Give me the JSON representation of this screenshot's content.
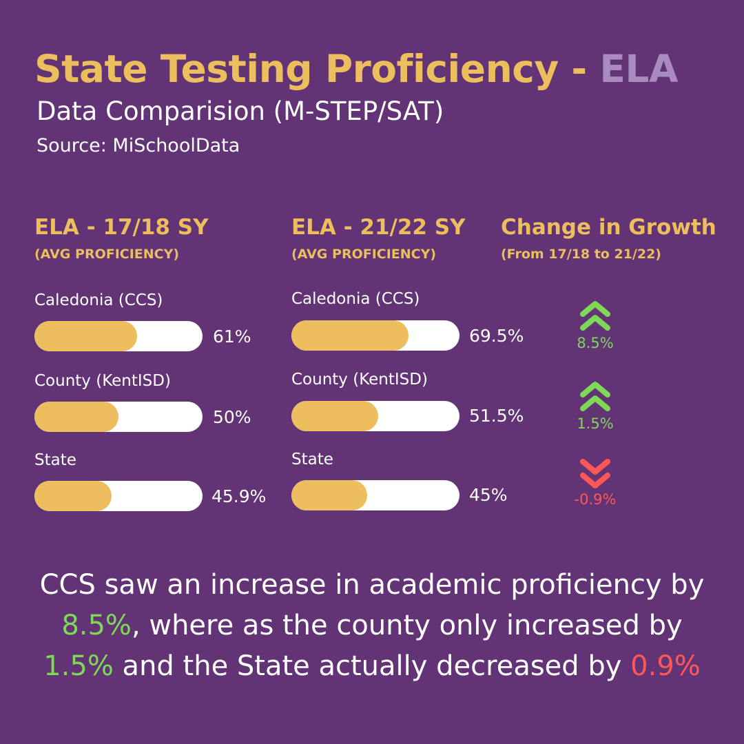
{
  "header": {
    "title_main": "State Testing Proficiency - ",
    "title_accent": "ELA",
    "subtitle": "Data Comparision (M-STEP/SAT)",
    "source": "Source: MiSchoolData"
  },
  "colors": {
    "background": "#623375",
    "gold": "#ecbe5d",
    "lavender": "#a98bbd",
    "increase": "#7ed957",
    "decrease": "#ff5757",
    "bar_track": "#ffffff"
  },
  "columns": {
    "sy1718": {
      "heading": "ELA - 17/18 SY",
      "subheading": "(AVG PROFICIENCY)",
      "items": [
        {
          "label": "Caledonia (CCS)",
          "value": 61,
          "value_text": "61%"
        },
        {
          "label": "County (KentISD)",
          "value": 50,
          "value_text": "50%"
        },
        {
          "label": "State",
          "value": 45.9,
          "value_text": "45.9%"
        }
      ]
    },
    "sy2122": {
      "heading": "ELA - 21/22 SY",
      "subheading": "(AVG PROFICIENCY)",
      "items": [
        {
          "label": "Caledonia (CCS)",
          "value": 69.5,
          "value_text": "69.5%"
        },
        {
          "label": "County (KentISD)",
          "value": 51.5,
          "value_text": "51.5%"
        },
        {
          "label": "State",
          "value": 45,
          "value_text": "45%"
        }
      ]
    },
    "change": {
      "heading": "Change in Growth",
      "subheading": "(From 17/18 to 21/22)",
      "items": [
        {
          "value_text": "8.5%",
          "direction": "up",
          "icon": "double-chevron-up-icon"
        },
        {
          "value_text": "1.5%",
          "direction": "up",
          "icon": "double-chevron-up-icon"
        },
        {
          "value_text": "-0.9%",
          "direction": "down",
          "icon": "double-chevron-down-icon"
        }
      ]
    }
  },
  "summary": {
    "part1": "CCS saw an increase in academic proficiency by ",
    "ccs_change": "8.5%",
    "part2": ", where as the county only increased by ",
    "county_change": "1.5%",
    "part3": " and the State actually decreased by ",
    "state_change": "0.9%"
  }
}
